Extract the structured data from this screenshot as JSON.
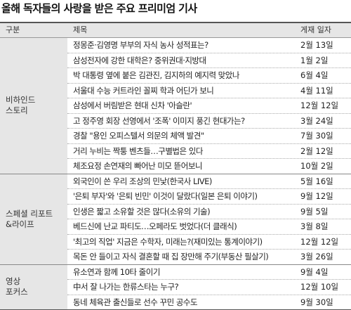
{
  "title": "올해 독자들의 사랑을 받은 주요 프리미엄 기사",
  "header": {
    "category": "구분",
    "headline": "제목",
    "date": "게재 일자"
  },
  "sections": [
    {
      "name": "비하인드\n스토리",
      "rows": [
        {
          "title": "정몽준·김영명 부부의 자식 농사 성적표는?",
          "date": "2월 13일"
        },
        {
          "title": "삼성전자에 강한 대학은? 중위권대·지방대",
          "date": "1월 2일"
        },
        {
          "title": "박 대통령 옆에 붙은 김관진, 김지하의 예지력 맞았나",
          "date": "6월 4일"
        },
        {
          "title": "서울대 수능 커트라인 꼴찌 학과 어딘가 보니",
          "date": "4월 11일"
        },
        {
          "title": "삼성에서 버림받은 현대 신차 '아슬란'",
          "date": "12월 12일"
        },
        {
          "title": "고 정주영 회장 선영에서 '조폭' 이미지 풍긴 현대가는?",
          "date": "3월 24일"
        },
        {
          "title": "경찰 \"용인 오피스텔서 의문의 체액 발견\"",
          "date": "7월 30일"
        },
        {
          "title": "거리 누비는 짝퉁 벤츠들…구별법은 있다",
          "date": "2월 12일"
        },
        {
          "title": "체조요정 손연재의 빠어난 미모 뜯어보니",
          "date": "10월 2일"
        }
      ]
    },
    {
      "name": "스페셜 리포트\n&라이프",
      "rows": [
        {
          "title": "외국인이 쓴 우리 조상의 민낯(한국사 LIVE)",
          "date": "5월 16일"
        },
        {
          "title": "'은퇴 부자'와 '은퇴 빈민' 이것이 달랐다(일본 은퇴 이야기)",
          "date": "9월 12일"
        },
        {
          "title": "인생은 짧고 소유할 것은 많다(소유의 기술)",
          "date": "9월 5일"
        },
        {
          "title": "베드신에 난교 파티도…오페라도 벗었다(더 클래식)",
          "date": "3월 8일"
        },
        {
          "title": "'최고의 직업' 지금은 수학자, 미래는?(재미있는 통계이야기)",
          "date": "12월 12일"
        },
        {
          "title": "목돈 안 들이고 자식 결혼할 때 집 장만해 주기(부동산 필살기)",
          "date": "3월 26일"
        }
      ]
    },
    {
      "name": "영상\n포커스",
      "rows": [
        {
          "title": "유소연과 함께 10타 줄이기",
          "date": "9월 4일"
        },
        {
          "title": "中서 잘 나가는 한류스타는 누구?",
          "date": "12월 10일"
        },
        {
          "title": "동네 체육관 출신들로 선수 꾸민 공수도",
          "date": "9월 30일"
        }
      ]
    }
  ]
}
